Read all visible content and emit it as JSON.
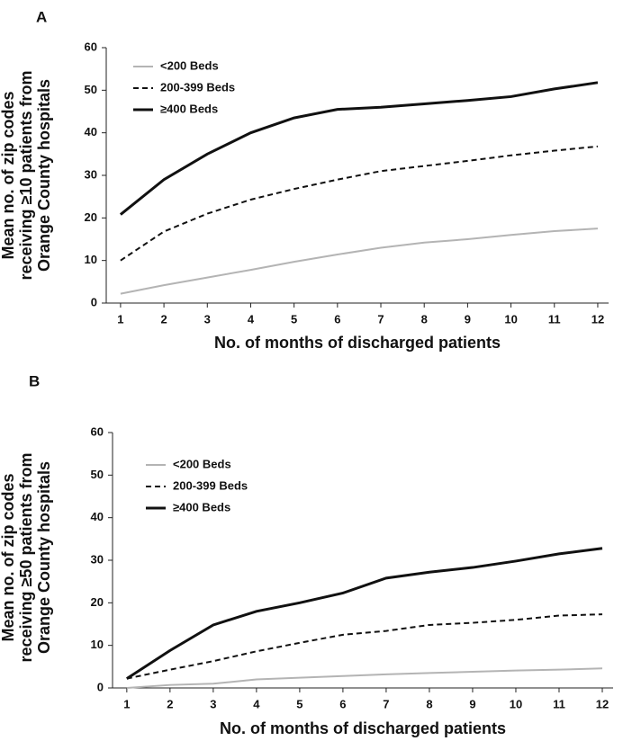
{
  "chart_data": [
    {
      "type": "line",
      "panel": "A",
      "ylabel": [
        "Mean no. of zip codes",
        "receiving ≥10 patients from",
        "Orange County hospitals"
      ],
      "xlabel": "No. of months of discharged patients",
      "x": [
        1,
        2,
        3,
        4,
        5,
        6,
        7,
        8,
        9,
        10,
        11,
        12
      ],
      "xlim": [
        0.67,
        12.25
      ],
      "xticks": [
        1,
        2,
        3,
        4,
        5,
        6,
        7,
        8,
        9,
        10,
        11,
        12
      ],
      "ylim": [
        0,
        60
      ],
      "yticks": [
        0,
        10,
        20,
        30,
        40,
        50,
        60
      ],
      "grid": false,
      "legend": "upper left",
      "series": [
        {
          "name": "<200 Beds",
          "color": "#b4b4b4",
          "line_style": "solid",
          "line_width": 2,
          "values": [
            2.2,
            4.2,
            6,
            7.8,
            9.7,
            11.4,
            13,
            14.2,
            15,
            16,
            16.9,
            17.5
          ]
        },
        {
          "name": "200-399 Beds",
          "color": "#111111",
          "line_style": "dashed",
          "line_width": 2,
          "values": [
            10,
            16.8,
            21,
            24.3,
            26.8,
            29,
            31,
            32.2,
            33.4,
            34.7,
            35.8,
            36.8
          ]
        },
        {
          "name": "≥400 Beds",
          "color": "#111111",
          "line_style": "solid",
          "line_width": 3,
          "values": [
            20.8,
            29,
            35,
            40,
            43.5,
            45.5,
            46,
            46.8,
            47.6,
            48.5,
            50.3,
            51.8
          ]
        }
      ]
    },
    {
      "type": "line",
      "panel": "B",
      "ylabel": [
        "Mean no. of zip codes",
        "receiving ≥50 patients from",
        "Orange County hospitals"
      ],
      "xlabel": "No. of months of discharged patients",
      "x": [
        1,
        2,
        3,
        4,
        5,
        6,
        7,
        8,
        9,
        10,
        11,
        12
      ],
      "xlim": [
        0.67,
        12.25
      ],
      "xticks": [
        1,
        2,
        3,
        4,
        5,
        6,
        7,
        8,
        9,
        10,
        11,
        12
      ],
      "ylim": [
        0,
        60
      ],
      "yticks": [
        0,
        10,
        20,
        30,
        40,
        50,
        60
      ],
      "grid": false,
      "legend": "upper left",
      "series": [
        {
          "name": "<200 Beds",
          "color": "#b4b4b4",
          "line_style": "solid",
          "line_width": 2,
          "values": [
            0,
            0.7,
            1,
            2,
            2.4,
            2.8,
            3.2,
            3.5,
            3.8,
            4.1,
            4.3,
            4.6
          ]
        },
        {
          "name": "200-399 Beds",
          "color": "#111111",
          "line_style": "dashed",
          "line_width": 2,
          "values": [
            2.2,
            4.3,
            6.3,
            8.6,
            10.6,
            12.5,
            13.4,
            14.8,
            15.3,
            16,
            17,
            17.3
          ]
        },
        {
          "name": "≥400 Beds",
          "color": "#111111",
          "line_style": "solid",
          "line_width": 3,
          "values": [
            2.2,
            8.8,
            14.8,
            18,
            20,
            22.3,
            25.8,
            27.2,
            28.3,
            29.8,
            31.5,
            32.8
          ]
        }
      ]
    }
  ]
}
